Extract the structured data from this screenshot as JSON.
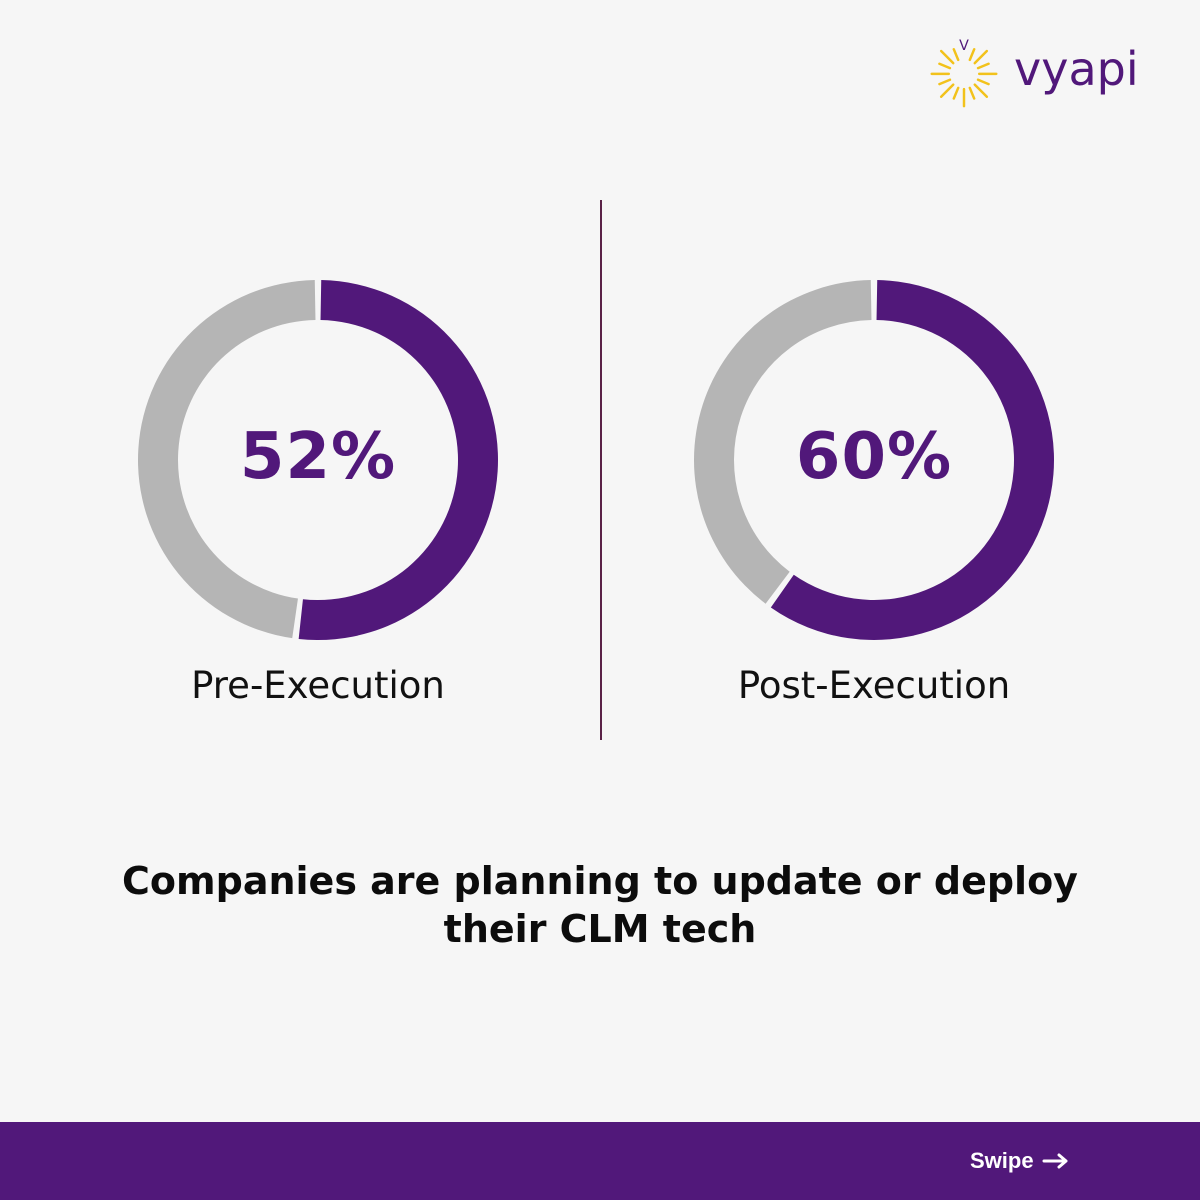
{
  "brand": {
    "name": "vyapi",
    "mark_letter": "V",
    "accent": "#f2c21b",
    "primary": "#51187a"
  },
  "colors": {
    "filled": "#51187a",
    "remainder": "#b5b5b5",
    "background": "#f6f6f6"
  },
  "chart_data": {
    "type": "pie",
    "charts": [
      {
        "label": "Pre-Execution",
        "value_text": "52%",
        "value": 52,
        "remainder": 48
      },
      {
        "label": "Post-Execution",
        "value_text": "60%",
        "value": 60,
        "remainder": 40
      }
    ],
    "caption_lines": [
      "Companies are planning to update or deploy",
      "their CLM tech"
    ]
  },
  "footer": {
    "swipe_label": "Swipe",
    "arrow_icon": "arrow-right-icon"
  }
}
